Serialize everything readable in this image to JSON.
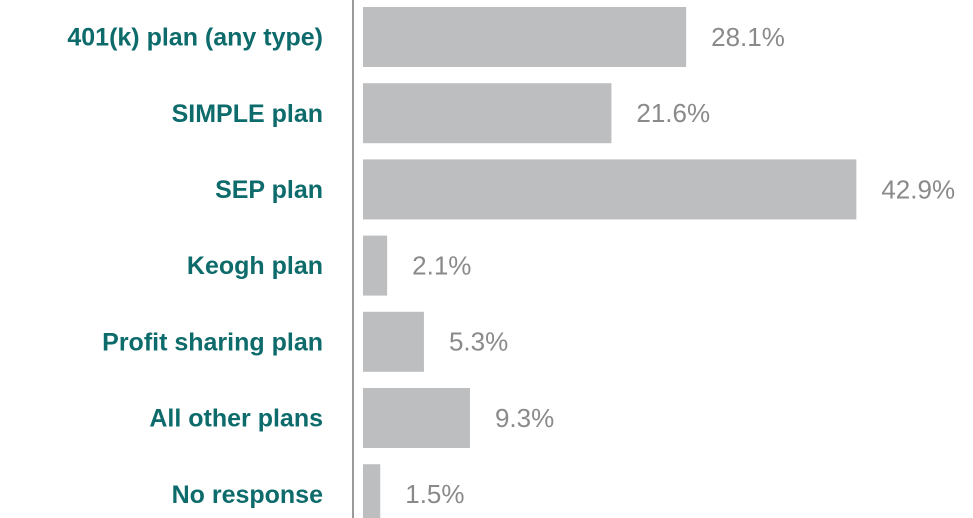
{
  "chart_data": {
    "type": "bar",
    "orientation": "horizontal",
    "categories": [
      "401(k) plan (any type)",
      "SIMPLE plan",
      "SEP plan",
      "Keogh plan",
      "Profit sharing plan",
      "All other plans",
      "No response"
    ],
    "values": [
      28.1,
      21.6,
      42.9,
      2.1,
      5.3,
      9.3,
      1.5
    ],
    "value_labels": [
      "28.1%",
      "21.6%",
      "42.9%",
      "2.1%",
      "5.3%",
      "9.3%",
      "1.5%"
    ],
    "color": "#bdbec0"
  }
}
